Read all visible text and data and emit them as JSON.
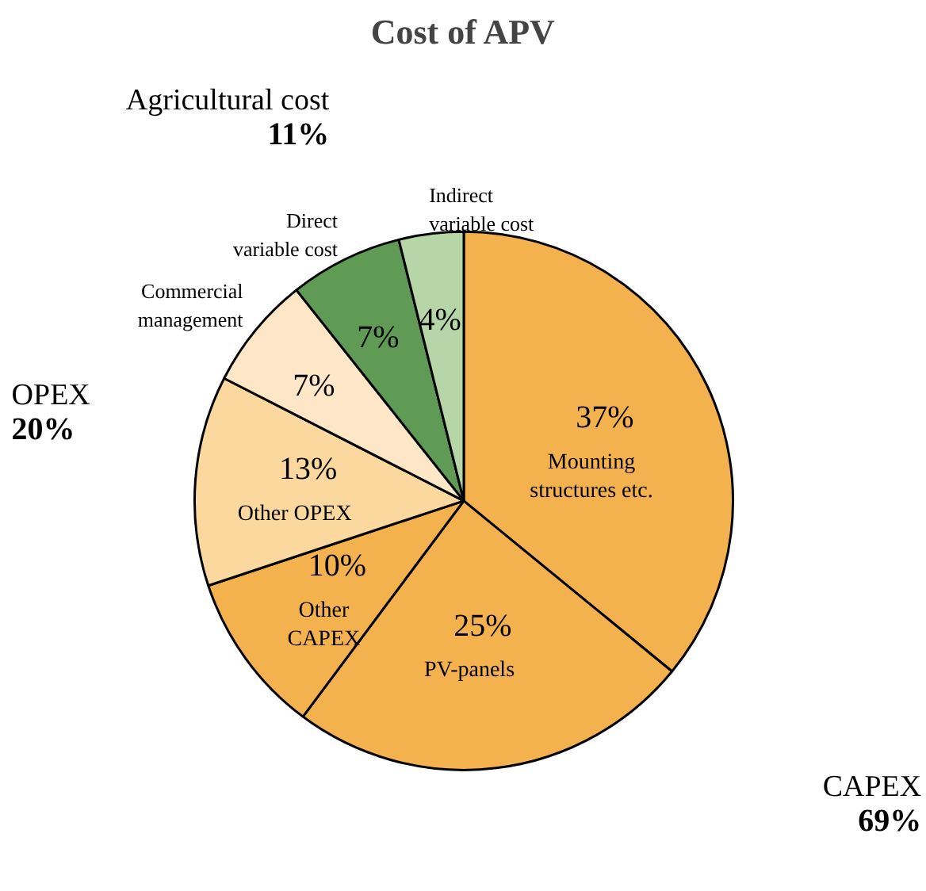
{
  "chart_data": {
    "type": "pie",
    "title": "Cost of APV",
    "categories": [
      "Mounting structures etc.",
      "PV-panels",
      "Other CAPEX",
      "Other OPEX",
      "Commercial management",
      "Direct variable cost",
      "Indirect variable cost"
    ],
    "values": [
      37,
      25,
      10,
      13,
      7,
      7,
      4
    ],
    "colors": [
      "#f4b24e",
      "#f4b24e",
      "#f4b24e",
      "#fbd89e",
      "#fde7c6",
      "#5f9b55",
      "#b7d6a8"
    ],
    "value_labels": [
      "37%",
      "25%",
      "10%",
      "13%",
      "7%",
      "7%",
      "4%"
    ],
    "annotations": [
      "Agricultural cost 11%",
      "OPEX 20%",
      "CAPEX 69%"
    ]
  }
}
